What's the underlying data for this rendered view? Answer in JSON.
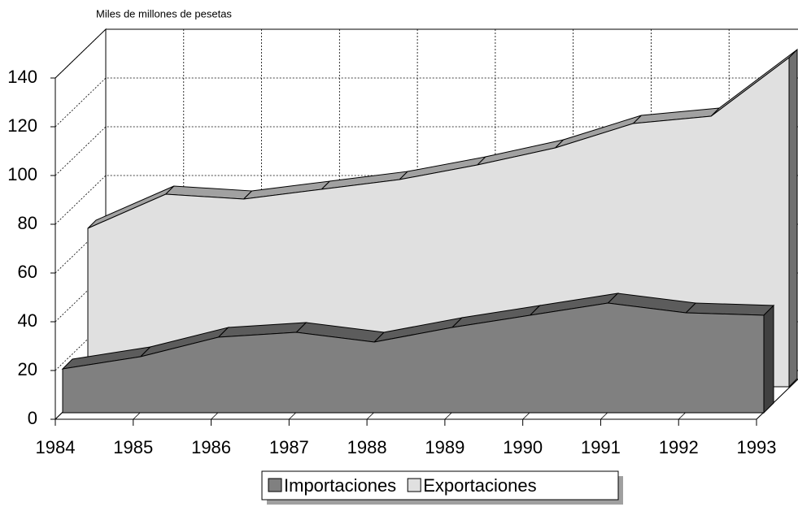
{
  "chart_data": {
    "type": "area3d",
    "subtitle": "Miles de millones de pesetas",
    "categories": [
      "1984",
      "1985",
      "1986",
      "1987",
      "1988",
      "1989",
      "1990",
      "1991",
      "1992",
      "1993"
    ],
    "series": [
      {
        "name": "Importaciones",
        "color": "#808080",
        "values": [
          18,
          23,
          31,
          33,
          29,
          35,
          40,
          45,
          41,
          40
        ]
      },
      {
        "name": "Exportaciones",
        "color": "#e0e0e0",
        "values": [
          65,
          79,
          77,
          81,
          85,
          91,
          98,
          108,
          111,
          135
        ]
      }
    ],
    "ylim": [
      0,
      140
    ],
    "yticks": [
      0,
      20,
      40,
      60,
      80,
      100,
      120,
      140
    ],
    "grid": true
  }
}
